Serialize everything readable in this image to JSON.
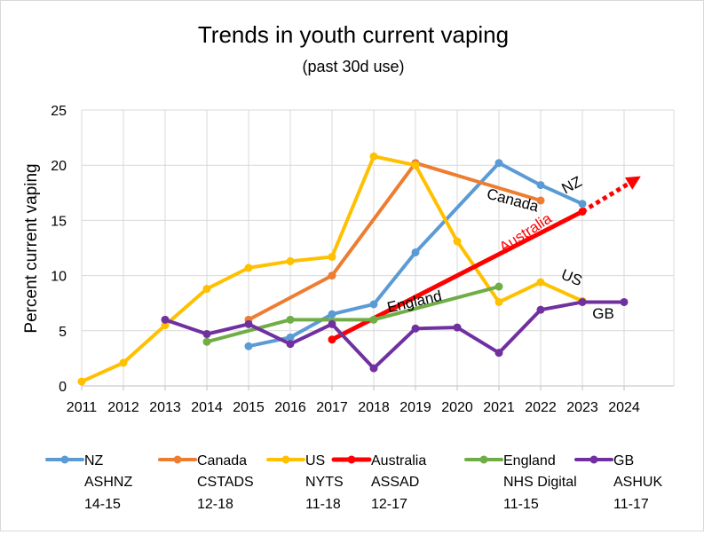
{
  "chart_data": {
    "type": "line",
    "title": "Trends in youth current vaping",
    "subtitle": "(past 30d use)",
    "ylabel": "Percent current vaping",
    "xlabel": "",
    "xlim": [
      2011,
      2024
    ],
    "ylim": [
      0,
      25
    ],
    "x_ticks": [
      "2011",
      "2012",
      "2013",
      "2014",
      "2015",
      "2016",
      "2017",
      "2018",
      "2019",
      "2020",
      "2021",
      "2022",
      "2023",
      "2024"
    ],
    "y_ticks": [
      "0",
      "5",
      "10",
      "15",
      "20",
      "25"
    ],
    "grid": true,
    "legend_position": "bottom",
    "series": [
      {
        "name": "NZ",
        "legend_lines": [
          "ASHNZ",
          "14-15"
        ],
        "color": "#5b9bd5",
        "points": [
          [
            2015,
            3.6
          ],
          [
            2016,
            4.4
          ],
          [
            2017,
            6.5
          ],
          [
            2018,
            7.4
          ],
          [
            2019,
            12.1
          ],
          [
            2021,
            20.2
          ],
          [
            2022,
            18.2
          ],
          [
            2023,
            16.5
          ]
        ]
      },
      {
        "name": "Canada",
        "legend_lines": [
          "CSTADS",
          "12-18"
        ],
        "color": "#ed7d31",
        "points": [
          [
            2015,
            6.0
          ],
          [
            2017,
            10.0
          ],
          [
            2019,
            20.2
          ],
          [
            2022,
            16.8
          ]
        ]
      },
      {
        "name": "US",
        "legend_lines": [
          "NYTS",
          "11-18"
        ],
        "color": "#ffc000",
        "points": [
          [
            2011,
            0.4
          ],
          [
            2012,
            2.1
          ],
          [
            2013,
            5.5
          ],
          [
            2014,
            8.8
          ],
          [
            2015,
            10.7
          ],
          [
            2016,
            11.3
          ],
          [
            2017,
            11.7
          ],
          [
            2018,
            20.8
          ],
          [
            2019,
            20.0
          ],
          [
            2020,
            13.1
          ],
          [
            2021,
            7.6
          ],
          [
            2022,
            9.4
          ],
          [
            2023,
            7.7
          ]
        ]
      },
      {
        "name": "Australia",
        "legend_lines": [
          "ASSAD",
          "12-17"
        ],
        "color": "#ff0000",
        "points": [
          [
            2017,
            4.2
          ],
          [
            2023,
            15.8
          ]
        ]
      },
      {
        "name": "England",
        "legend_lines": [
          "NHS Digital",
          "11-15"
        ],
        "color": "#70ad47",
        "points": [
          [
            2014,
            4.0
          ],
          [
            2016,
            6.0
          ],
          [
            2018,
            6.0
          ],
          [
            2021,
            9.0
          ]
        ]
      },
      {
        "name": "GB",
        "legend_lines": [
          "ASHUK",
          "11-17"
        ],
        "color": "#7030a0",
        "points": [
          [
            2013,
            6.0
          ],
          [
            2014,
            4.7
          ],
          [
            2015,
            5.6
          ],
          [
            2016,
            3.8
          ],
          [
            2017,
            5.6
          ],
          [
            2018,
            1.6
          ],
          [
            2019,
            5.2
          ],
          [
            2020,
            5.3
          ],
          [
            2021,
            3.0
          ],
          [
            2022,
            6.9
          ],
          [
            2023,
            7.6
          ],
          [
            2024,
            7.6
          ]
        ]
      }
    ],
    "projection": {
      "series": "Australia",
      "from": [
        2023,
        15.8
      ],
      "to": [
        2024.4,
        19.0
      ],
      "style": "dotted-arrow"
    },
    "annotations": [
      {
        "text": "NZ",
        "x": 2022.8,
        "y": 17.8,
        "angle": -28,
        "color": "#000000"
      },
      {
        "text": "Canada",
        "x": 2021.3,
        "y": 16.4,
        "angle": 15,
        "color": "#000000"
      },
      {
        "text": "Australia",
        "x": 2021.7,
        "y": 13.5,
        "angle": -33,
        "color": "#ff0000"
      },
      {
        "text": "US",
        "x": 2022.7,
        "y": 9.4,
        "angle": 22,
        "color": "#000000"
      },
      {
        "text": "England",
        "x": 2019.0,
        "y": 7.2,
        "angle": -13,
        "color": "#000000"
      },
      {
        "text": "GB",
        "x": 2023.5,
        "y": 6.1,
        "angle": 0,
        "color": "#000000"
      }
    ]
  }
}
